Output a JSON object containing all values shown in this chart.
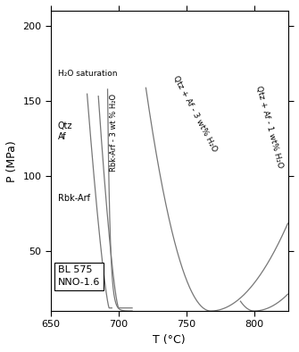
{
  "xlim": [
    650,
    825
  ],
  "ylim": [
    10,
    210
  ],
  "xlabel": "T (°C)",
  "ylabel": "P (MPa)",
  "xticks": [
    650,
    700,
    750,
    800
  ],
  "yticks": [
    50,
    100,
    150,
    200
  ],
  "annotation_H2O_sat": "H₂O saturation",
  "annotation_Rbk_Arf_3wt": "Rbk-Arf - 3 wt % H₂O",
  "annotation_Qtz_Af_3wt": "Qtz + Af - 3 wt% H₂O",
  "annotation_Qtz_Af_1wt": "Qtz + Af - 1 wt% H₂O",
  "line_color": "#777777",
  "figsize": [
    3.35,
    3.94
  ],
  "dpi": 100
}
